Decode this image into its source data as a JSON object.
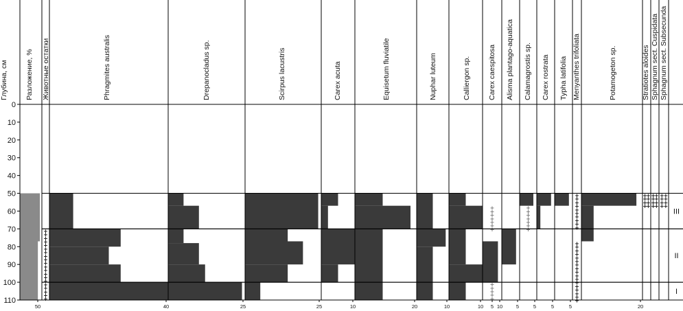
{
  "colors": {
    "bar": "#3a3a3a",
    "decomposition": "#8a8a8a",
    "line": "#000000",
    "plus_light": "#777777",
    "plus_dark": "#111111"
  },
  "chart_data": {
    "type": "stratigraphic-bar",
    "depth_label": "Глубина, см",
    "depth_ticks": [
      0,
      10,
      20,
      30,
      40,
      50,
      60,
      70,
      80,
      90,
      100,
      110
    ],
    "zones": [
      {
        "label": "III",
        "top": 50,
        "bottom": 70
      },
      {
        "label": "II",
        "top": 70,
        "bottom": 100
      },
      {
        "label": "I",
        "top": 100,
        "bottom": 110
      }
    ],
    "decomposition": {
      "label": "Разложение, %",
      "max": 55,
      "tick_labels": [
        "50"
      ],
      "intervals": [
        {
          "top": 50,
          "bottom": 77,
          "value": 50
        },
        {
          "top": 77,
          "bottom": 110,
          "value": 45
        }
      ]
    },
    "animal_remains": {
      "label": "Животные остатки",
      "marks": [
        {
          "top": 70,
          "bottom": 110,
          "density": "dark"
        }
      ]
    },
    "taxa": [
      {
        "name": "Phragmites australis",
        "max": 40,
        "tick_labels": [
          "40"
        ],
        "intervals": [
          {
            "top": 50,
            "bottom": 70,
            "value": 8
          },
          {
            "top": 70,
            "bottom": 80,
            "value": 24
          },
          {
            "top": 80,
            "bottom": 90,
            "value": 20
          },
          {
            "top": 90,
            "bottom": 100,
            "value": 24
          },
          {
            "top": 100,
            "bottom": 110,
            "value": 40
          }
        ]
      },
      {
        "name": "Drepanocladus sp.",
        "max": 25,
        "tick_labels": [
          "25"
        ],
        "intervals": [
          {
            "top": 50,
            "bottom": 57,
            "value": 5
          },
          {
            "top": 57,
            "bottom": 70,
            "value": 10
          },
          {
            "top": 70,
            "bottom": 78,
            "value": 5
          },
          {
            "top": 78,
            "bottom": 90,
            "value": 10
          },
          {
            "top": 90,
            "bottom": 100,
            "value": 12
          },
          {
            "top": 100,
            "bottom": 110,
            "value": 24
          }
        ]
      },
      {
        "name": "Scirpus lacustris",
        "max": 25,
        "tick_labels": [
          "25"
        ],
        "intervals": [
          {
            "top": 50,
            "bottom": 70,
            "value": 24
          },
          {
            "top": 70,
            "bottom": 77,
            "value": 14
          },
          {
            "top": 77,
            "bottom": 90,
            "value": 19
          },
          {
            "top": 90,
            "bottom": 100,
            "value": 14
          },
          {
            "top": 100,
            "bottom": 110,
            "value": 5
          }
        ]
      },
      {
        "name": "Carex acuta",
        "max": 10,
        "tick_labels": [
          "10"
        ],
        "intervals": [
          {
            "top": 50,
            "bottom": 57,
            "value": 5
          },
          {
            "top": 57,
            "bottom": 70,
            "value": 2
          },
          {
            "top": 70,
            "bottom": 90,
            "value": 10
          },
          {
            "top": 90,
            "bottom": 100,
            "value": 5
          }
        ]
      },
      {
        "name": "Equisetum fluviatile",
        "max": 20,
        "tick_labels": [
          "20"
        ],
        "intervals": [
          {
            "top": 50,
            "bottom": 57,
            "value": 9
          },
          {
            "top": 57,
            "bottom": 70,
            "value": 18
          },
          {
            "top": 70,
            "bottom": 110,
            "value": 9
          }
        ]
      },
      {
        "name": "Nuphar luteum",
        "max": 10,
        "tick_labels": [
          "10"
        ],
        "intervals": [
          {
            "top": 50,
            "bottom": 70,
            "value": 5
          },
          {
            "top": 70,
            "bottom": 80,
            "value": 9
          },
          {
            "top": 80,
            "bottom": 110,
            "value": 5
          }
        ]
      },
      {
        "name": "Calliergon sp.",
        "max": 10,
        "tick_labels": [
          "10"
        ],
        "intervals": [
          {
            "top": 50,
            "bottom": 57,
            "value": 5
          },
          {
            "top": 57,
            "bottom": 70,
            "value": 10
          },
          {
            "top": 70,
            "bottom": 90,
            "value": 5
          },
          {
            "top": 90,
            "bottom": 100,
            "value": 10
          },
          {
            "top": 100,
            "bottom": 110,
            "value": 5
          }
        ]
      },
      {
        "name": "Carex caespitosa",
        "max": 10,
        "tick_labels": [
          "10",
          "5"
        ],
        "intervals": [
          {
            "top": 77,
            "bottom": 100,
            "value": 8
          }
        ],
        "marks": [
          {
            "top": 57,
            "bottom": 70,
            "density": "light"
          },
          {
            "top": 100,
            "bottom": 110,
            "density": "light"
          }
        ]
      },
      {
        "name": "Alisma plantago-aquatica",
        "max": 5,
        "tick_labels": [
          "5"
        ],
        "intervals": [
          {
            "top": 70,
            "bottom": 90,
            "value": 4
          }
        ]
      },
      {
        "name": "Calamagrostis sp.",
        "max": 5,
        "tick_labels": [
          "5"
        ],
        "intervals": [
          {
            "top": 50,
            "bottom": 57,
            "value": 4
          }
        ],
        "marks": [
          {
            "top": 57,
            "bottom": 70,
            "density": "light"
          }
        ]
      },
      {
        "name": "Carex rostrata",
        "max": 5,
        "tick_labels": [
          "5"
        ],
        "intervals": [
          {
            "top": 50,
            "bottom": 57,
            "value": 4
          },
          {
            "top": 57,
            "bottom": 70,
            "value": 1
          }
        ]
      },
      {
        "name": "Typha latifolia",
        "max": 5,
        "tick_labels": [
          "5"
        ],
        "intervals": [
          {
            "top": 50,
            "bottom": 57,
            "value": 4
          }
        ]
      },
      {
        "name": "Menyanthes trifoliata",
        "max": 2,
        "tick_labels": [],
        "intervals": [],
        "marks": [
          {
            "top": 50,
            "bottom": 70,
            "density": "dark"
          },
          {
            "top": 77,
            "bottom": 110,
            "density": "dark"
          }
        ]
      },
      {
        "name": "Potamogeton sp.",
        "max": 20,
        "tick_labels": [
          "20"
        ],
        "intervals": [
          {
            "top": 50,
            "bottom": 57,
            "value": 18
          },
          {
            "top": 57,
            "bottom": 70,
            "value": 4
          },
          {
            "top": 70,
            "bottom": 77,
            "value": 4
          }
        ]
      },
      {
        "name": "Stratiotes aloides",
        "max": 2,
        "tick_labels": [],
        "intervals": [],
        "marks": [
          {
            "top": 50,
            "bottom": 57,
            "density": "dark"
          }
        ]
      },
      {
        "name": "Sphagnum sect. Cuspidata",
        "max": 2,
        "tick_labels": [],
        "intervals": [],
        "marks": [
          {
            "top": 50,
            "bottom": 57,
            "density": "dark"
          }
        ]
      },
      {
        "name": "Sphagnum sect. Subsecunda",
        "max": 2,
        "tick_labels": [],
        "intervals": [],
        "marks": [
          {
            "top": 50,
            "bottom": 57,
            "density": "dark"
          }
        ]
      }
    ]
  }
}
